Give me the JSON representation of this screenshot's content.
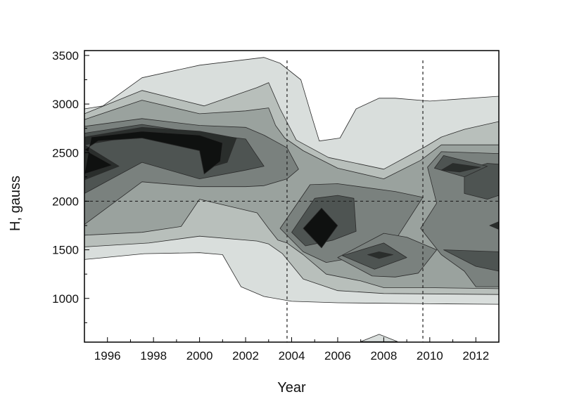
{
  "chart_data": {
    "type": "contour",
    "title": "",
    "xlabel": "Year",
    "ylabel": "H, gauss",
    "xlim": [
      1995,
      2013
    ],
    "ylim": [
      550,
      3550
    ],
    "x_ticks": [
      1996,
      1998,
      2000,
      2002,
      2004,
      2006,
      2008,
      2010,
      2012
    ],
    "y_ticks": [
      1000,
      1500,
      2000,
      2500,
      3000,
      3500
    ],
    "grid": false,
    "legend": "none",
    "reference_lines": {
      "vertical_years": [
        2003.8,
        2009.7
      ],
      "horizontal_H": [
        2000
      ]
    },
    "contour_levels": [
      {
        "level": 1,
        "color": "#d9dedc",
        "polygons": [
          [
            [
              1995,
              1400
            ],
            [
              1997.6,
              1460
            ],
            [
              2000,
              1470
            ],
            [
              2001,
              1450
            ],
            [
              2001.8,
              1120
            ],
            [
              2002.8,
              1020
            ],
            [
              2004,
              970
            ],
            [
              2006,
              955
            ],
            [
              2008,
              950
            ],
            [
              2010,
              945
            ],
            [
              2013,
              940
            ],
            [
              2013,
              3080
            ],
            [
              2010,
              3030
            ],
            [
              2008.5,
              3060
            ],
            [
              2007.8,
              3060
            ],
            [
              2006.8,
              2950
            ],
            [
              2006.1,
              2650
            ],
            [
              2005.2,
              2620
            ],
            [
              2004.9,
              2850
            ],
            [
              2004.4,
              3250
            ],
            [
              2003.5,
              3420
            ],
            [
              2002.8,
              3480
            ],
            [
              2000,
              3400
            ],
            [
              1997.5,
              3270
            ],
            [
              1995.8,
              2980
            ],
            [
              1995,
              2950
            ]
          ],
          [
            [
              2007,
              555
            ],
            [
              2007.8,
              630
            ],
            [
              2008.6,
              555
            ]
          ]
        ]
      },
      {
        "level": 2,
        "color": "#b8bfbb",
        "polygons": [
          [
            [
              1995,
              1530
            ],
            [
              1997.8,
              1570
            ],
            [
              2000,
              1640
            ],
            [
              2002.5,
              1590
            ],
            [
              2003,
              1560
            ],
            [
              2003.6,
              1460
            ],
            [
              2004.5,
              1200
            ],
            [
              2006,
              1080
            ],
            [
              2008,
              1050
            ],
            [
              2013,
              1040
            ],
            [
              2013,
              2820
            ],
            [
              2011.5,
              2740
            ],
            [
              2010.5,
              2660
            ],
            [
              2009.8,
              2560
            ],
            [
              2008,
              2330
            ],
            [
              2007,
              2380
            ],
            [
              2005.6,
              2450
            ],
            [
              2004.2,
              2630
            ],
            [
              2003.5,
              2950
            ],
            [
              2003,
              3220
            ],
            [
              2002.5,
              3170
            ],
            [
              2000.2,
              2980
            ],
            [
              1997.5,
              3140
            ],
            [
              1995,
              2900
            ]
          ]
        ]
      },
      {
        "level": 3,
        "color": "#9aa29e",
        "polygons": [
          [
            [
              1995,
              1650
            ],
            [
              1997.5,
              1680
            ],
            [
              1999.2,
              1740
            ],
            [
              2000,
              2020
            ],
            [
              2002.5,
              1880
            ],
            [
              2003,
              1720
            ],
            [
              2003.4,
              1600
            ],
            [
              2003.8,
              1570
            ],
            [
              2004.5,
              1450
            ],
            [
              2005.5,
              1250
            ],
            [
              2007,
              1180
            ],
            [
              2008,
              1110
            ],
            [
              2010,
              1110
            ],
            [
              2013,
              1100
            ],
            [
              2013,
              2580
            ],
            [
              2010.5,
              2580
            ],
            [
              2009.6,
              2420
            ],
            [
              2008,
              2230
            ],
            [
              2006,
              2340
            ],
            [
              2004.5,
              2520
            ],
            [
              2003.7,
              2650
            ],
            [
              2003.3,
              2780
            ],
            [
              2003,
              2960
            ],
            [
              2002,
              2930
            ],
            [
              2000,
              2900
            ],
            [
              1997.5,
              3040
            ],
            [
              1995,
              2840
            ]
          ]
        ]
      },
      {
        "level": 4,
        "color": "#7a817e",
        "polygons": [
          [
            [
              1995,
              1760
            ],
            [
              1997.5,
              2200
            ],
            [
              2000,
              2150
            ],
            [
              2002,
              2150
            ],
            [
              2002.8,
              2160
            ],
            [
              2003.8,
              2230
            ],
            [
              2004.3,
              2330
            ],
            [
              2003.8,
              2550
            ],
            [
              2002.8,
              2680
            ],
            [
              2002,
              2760
            ],
            [
              2000,
              2780
            ],
            [
              1997.5,
              2850
            ],
            [
              1995,
              2770
            ]
          ],
          [
            [
              2003.5,
              1720
            ],
            [
              2004.8,
              2170
            ],
            [
              2006,
              2180
            ],
            [
              2008.5,
              2100
            ],
            [
              2009.7,
              2040
            ],
            [
              2008.5,
              1600
            ],
            [
              2006.5,
              1410
            ],
            [
              2005.5,
              1370
            ],
            [
              2004.5,
              1480
            ]
          ],
          [
            [
              2006,
              1420
            ],
            [
              2007.5,
              1230
            ],
            [
              2008.5,
              1220
            ],
            [
              2009.5,
              1260
            ],
            [
              2010.3,
              1500
            ],
            [
              2009,
              1630
            ],
            [
              2008,
              1670
            ]
          ],
          [
            [
              2009.6,
              1720
            ],
            [
              2010.3,
              1980
            ],
            [
              2009.9,
              2350
            ],
            [
              2010.5,
              2510
            ],
            [
              2013,
              2490
            ],
            [
              2013,
              1120
            ],
            [
              2012,
              1120
            ],
            [
              2011.5,
              1280
            ],
            [
              2010.5,
              1450
            ]
          ]
        ]
      },
      {
        "level": 5,
        "color": "#4e5452",
        "polygons": [
          [
            [
              1995,
              2080
            ],
            [
              1997.5,
              2400
            ],
            [
              2000,
              2230
            ],
            [
              2002,
              2320
            ],
            [
              2002.8,
              2360
            ],
            [
              2002.4,
              2500
            ],
            [
              2002,
              2640
            ],
            [
              2000,
              2700
            ],
            [
              1997.5,
              2790
            ],
            [
              1995,
              2700
            ]
          ],
          [
            [
              2004,
              1680
            ],
            [
              2004.6,
              1540
            ],
            [
              2005.8,
              1600
            ],
            [
              2006.8,
              1690
            ],
            [
              2006.7,
              2030
            ],
            [
              2006,
              2060
            ],
            [
              2005,
              2030
            ]
          ],
          [
            [
              2006.2,
              1440
            ],
            [
              2007.6,
              1300
            ],
            [
              2009,
              1420
            ],
            [
              2008,
              1570
            ]
          ],
          [
            [
              2010.6,
              1500
            ],
            [
              2013,
              1480
            ],
            [
              2013,
              1280
            ],
            [
              2012,
              1330
            ]
          ],
          [
            [
              2011.5,
              2080
            ],
            [
              2012.5,
              2020
            ],
            [
              2013,
              2060
            ],
            [
              2013,
              2380
            ],
            [
              2012.5,
              2390
            ],
            [
              2011.5,
              2320
            ]
          ],
          [
            [
              2010.2,
              2340
            ],
            [
              2010.6,
              2470
            ],
            [
              2012.5,
              2360
            ],
            [
              2011.5,
              2250
            ]
          ]
        ]
      },
      {
        "level": 6,
        "color": "#2a2e2c",
        "polygons": [
          [
            [
              1995,
              2220
            ],
            [
              1996.5,
              2360
            ],
            [
              1995,
              2580
            ],
            [
              1997.5,
              2680
            ],
            [
              2000,
              2580
            ],
            [
              2000.2,
              2330
            ],
            [
              2001.2,
              2400
            ],
            [
              2001.6,
              2650
            ],
            [
              2000,
              2720
            ],
            [
              1997.5,
              2760
            ],
            [
              1995,
              2660
            ]
          ],
          [
            [
              2007.3,
              1450
            ],
            [
              2007.8,
              1410
            ],
            [
              2008.4,
              1450
            ],
            [
              2007.8,
              1480
            ]
          ],
          [
            [
              2010.5,
              2320
            ],
            [
              2011,
              2390
            ],
            [
              2012.2,
              2350
            ],
            [
              2011.3,
              2300
            ]
          ],
          [
            [
              2012.6,
              1750
            ],
            [
              2013,
              1710
            ],
            [
              2013,
              1790
            ]
          ]
        ]
      },
      {
        "level": 7,
        "color": "#0f1110",
        "polygons": [
          [
            [
              1995,
              2280
            ],
            [
              1996.2,
              2370
            ],
            [
              1995,
              2530
            ],
            [
              1995.6,
              2620
            ],
            [
              1997.5,
              2650
            ],
            [
              2000,
              2520
            ],
            [
              2000.2,
              2280
            ],
            [
              2000.9,
              2410
            ],
            [
              2001,
              2600
            ],
            [
              2000,
              2680
            ],
            [
              1997.5,
              2720
            ],
            [
              1995.3,
              2660
            ]
          ],
          [
            [
              2004.5,
              1720
            ],
            [
              2005.3,
              1930
            ],
            [
              2006,
              1750
            ],
            [
              2005.3,
              1520
            ]
          ]
        ]
      }
    ]
  }
}
